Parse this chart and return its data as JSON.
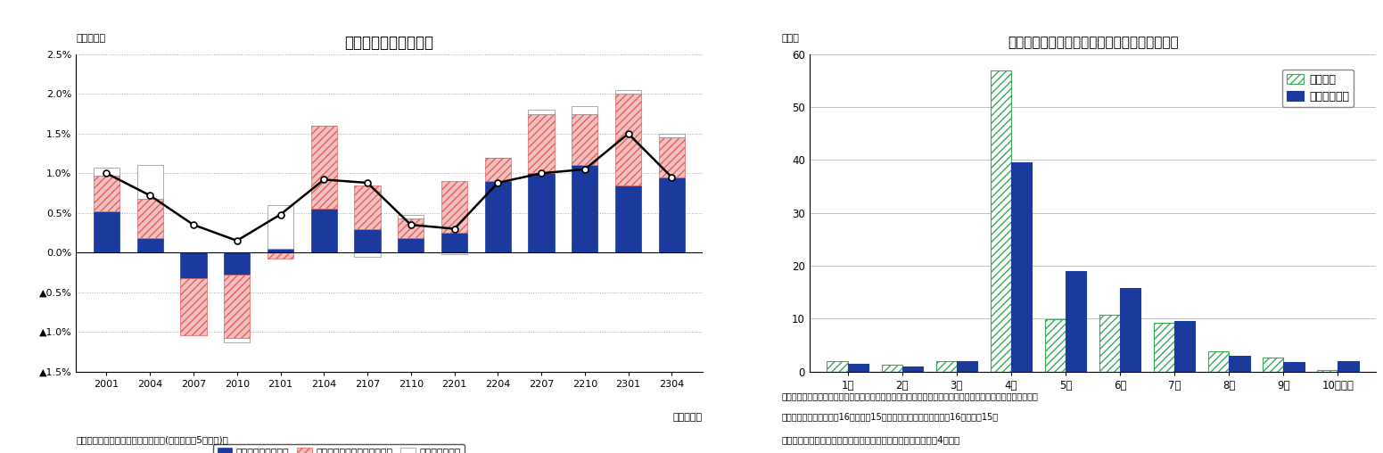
{
  "left": {
    "title": "所定内給与の要因分解",
    "ylabel": "（前年比）",
    "xlabel": "（年・月）",
    "source": "（資料）厚生労働省「毎月勤労統計(事業所規模5人以上)」",
    "xlabels": [
      "2001",
      "2004",
      "2007",
      "2010",
      "2101",
      "2104",
      "2107",
      "2110",
      "2201",
      "2204",
      "2207",
      "2210",
      "2301",
      "2304"
    ],
    "ylim": [
      -1.5,
      2.5
    ],
    "yticks": [
      -1.5,
      -1.0,
      -0.5,
      0.0,
      0.5,
      1.0,
      1.5,
      2.0,
      2.5
    ],
    "yticklabels": [
      "▲1.5%",
      "▲1.0%",
      "▲0.5%",
      "0.0%",
      "0.5%",
      "1.0%",
      "1.5%",
      "2.0%",
      "2.5%"
    ],
    "blue_bars": [
      0.52,
      0.18,
      -0.32,
      -0.28,
      0.05,
      0.55,
      0.3,
      0.18,
      0.25,
      0.9,
      1.0,
      1.1,
      0.85,
      0.95
    ],
    "pink_bars": [
      0.45,
      0.5,
      -0.72,
      -0.8,
      -0.08,
      1.05,
      0.55,
      0.25,
      0.65,
      0.3,
      0.75,
      0.65,
      1.15,
      0.5
    ],
    "white_bars": [
      0.1,
      0.42,
      0.0,
      -0.05,
      0.55,
      0.0,
      -0.05,
      0.05,
      -0.02,
      0.0,
      0.05,
      0.1,
      0.05,
      0.05
    ],
    "line_values": [
      1.0,
      0.72,
      0.35,
      0.15,
      0.48,
      0.92,
      0.88,
      0.35,
      0.3,
      0.88,
      1.0,
      1.05,
      1.5,
      0.95
    ],
    "legend_labels": [
      "一般労働者賃金要因",
      "パートタイム労働者賃金要因",
      "パート比率要因"
    ],
    "line_color": "#000000"
  },
  "right": {
    "title": "賃金改定の適用時期と初回支給時期別企業割合",
    "ylabel": "（％）",
    "source_note1": "（注）適用時期は改定額が給与計算に適用された時期、初回支給時期は改定後の賃金が初めて支給された時期",
    "source_note2": "　　適用時期の月は前月16日～当月15日、初回支給時期の月は当月16日～翌月15日",
    "source": "（出所）厚生労働省「賃金引上げ等の実態に関する調査（令和4年）」",
    "xlabels": [
      "1月",
      "2月",
      "3月",
      "4月",
      "5月",
      "6月",
      "7月",
      "8月",
      "9月",
      "10月以降"
    ],
    "ylim": [
      0,
      60
    ],
    "yticks": [
      0,
      10,
      20,
      30,
      40,
      50,
      60
    ],
    "green_bars": [
      2.0,
      1.2,
      2.0,
      57.0,
      9.8,
      10.7,
      9.2,
      3.8,
      2.7,
      0.3
    ],
    "blue_bars": [
      1.5,
      1.0,
      2.0,
      39.5,
      19.0,
      15.8,
      9.5,
      3.0,
      1.8,
      2.0
    ],
    "legend_labels": [
      "適用時期",
      "初回支給時期"
    ]
  }
}
